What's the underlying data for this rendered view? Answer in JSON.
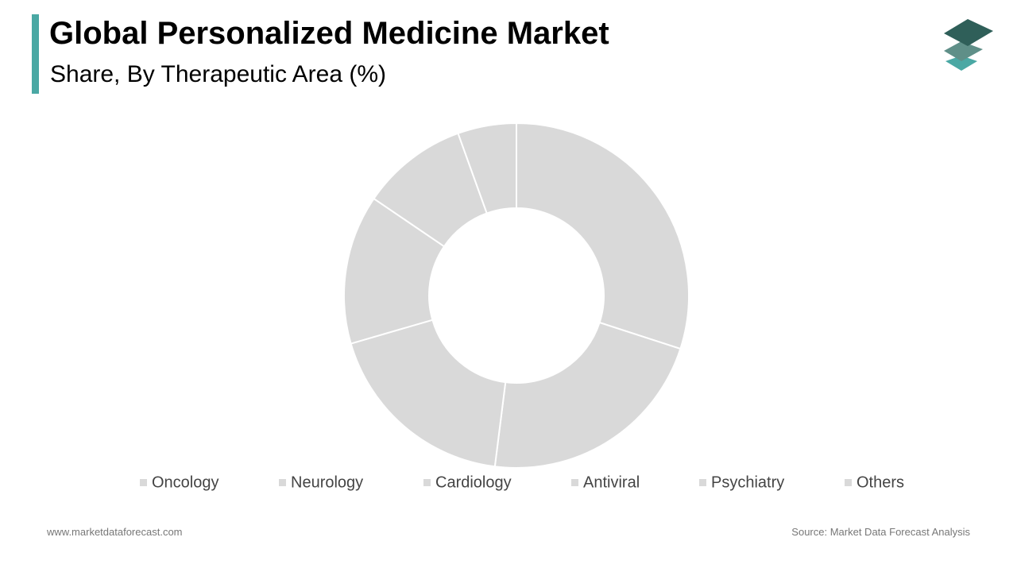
{
  "header": {
    "title": "Global Personalized Medicine Market",
    "subtitle": "Share, By Therapeutic Area (%)"
  },
  "chart_data": {
    "type": "donut",
    "categories": [
      "Oncology",
      "Neurology",
      "Cardiology",
      "Antiviral",
      "Psychiatry",
      "Others"
    ],
    "values": [
      30,
      22,
      18.5,
      14,
      10,
      5.5
    ],
    "colors": [
      "#d9d9d9",
      "#d9d9d9",
      "#d9d9d9",
      "#d9d9d9",
      "#d9d9d9",
      "#d9d9d9"
    ],
    "legend": "bottom"
  },
  "footer": {
    "website": "www.marketdataforecast.com",
    "source": "Source: Market Data Forecast Analysis"
  }
}
